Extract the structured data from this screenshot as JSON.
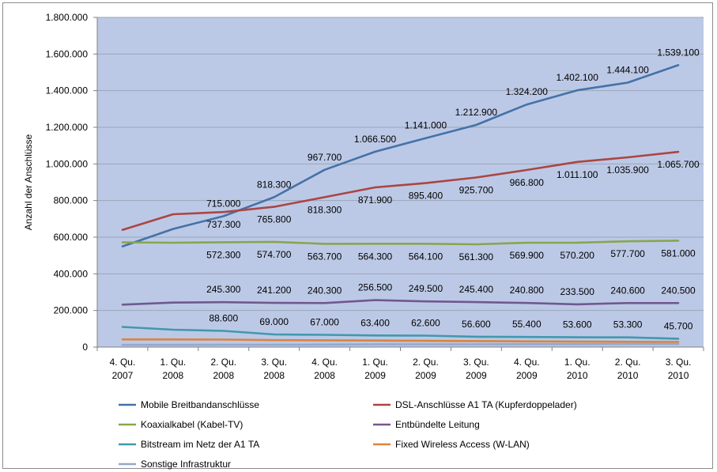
{
  "chart_data": {
    "type": "line",
    "ylabel": "Anzahl der Anschlüsse",
    "ylim": [
      0,
      1800000
    ],
    "y_ticks": [
      "0",
      "200.000",
      "400.000",
      "600.000",
      "800.000",
      "1.000.000",
      "1.200.000",
      "1.400.000",
      "1.600.000",
      "1.800.000"
    ],
    "categories": [
      [
        "4. Qu.",
        "2007"
      ],
      [
        "1. Qu.",
        "2008"
      ],
      [
        "2. Qu.",
        "2008"
      ],
      [
        "3. Qu.",
        "2008"
      ],
      [
        "4. Qu.",
        "2008"
      ],
      [
        "1. Qu.",
        "2009"
      ],
      [
        "2. Qu.",
        "2009"
      ],
      [
        "3. Qu.",
        "2009"
      ],
      [
        "4. Qu.",
        "2009"
      ],
      [
        "1. Qu.",
        "2010"
      ],
      [
        "2. Qu.",
        "2010"
      ],
      [
        "3. Qu.",
        "2010"
      ]
    ],
    "legend_position": "bottom",
    "grid": "horizontal",
    "plot_background": "#bcc9e6",
    "series": [
      {
        "name": "Mobile  Breitbandanschlüsse",
        "color": "#4572a7",
        "values": [
          550000,
          645000,
          715000,
          818300,
          967700,
          1066500,
          1141000,
          1212900,
          1324200,
          1402100,
          1444100,
          1539100
        ],
        "labels": [
          null,
          null,
          "715.000",
          "818.300",
          "967.700",
          "1.066.500",
          "1.141.000",
          "1.212.900",
          "1.324.200",
          "1.402.100",
          "1.444.100",
          "1.539.100"
        ],
        "label_pos": "above"
      },
      {
        "name": "DSL-Anschlüsse A1 TA (Kupferdoppelader)",
        "color": "#aa4643",
        "values": [
          640000,
          725000,
          737300,
          765800,
          818300,
          871900,
          895400,
          925700,
          966800,
          1011100,
          1035900,
          1065700
        ],
        "labels": [
          null,
          null,
          "737.300",
          "765.800",
          "818.300",
          "871.900",
          "895.400",
          "925.700",
          "966.800",
          "1.011.100",
          "1.035.900",
          "1.065.700"
        ],
        "label_pos": "below"
      },
      {
        "name": "Koaxialkabel (Kabel-TV)",
        "color": "#89a54e",
        "values": [
          572000,
          570000,
          572300,
          574700,
          563700,
          564300,
          564100,
          561300,
          569900,
          570200,
          577700,
          581000
        ],
        "labels": [
          null,
          null,
          "572.300",
          "574.700",
          "563.700",
          "564.300",
          "564.100",
          "561.300",
          "569.900",
          "570.200",
          "577.700",
          "581.000"
        ],
        "label_pos": "below"
      },
      {
        "name": "Entbündelte Leitung",
        "color": "#71588f",
        "values": [
          232000,
          243000,
          245300,
          241200,
          240300,
          256500,
          249500,
          245400,
          240800,
          233500,
          240600,
          240500
        ],
        "labels": [
          null,
          null,
          "245.300",
          "241.200",
          "240.300",
          "256.500",
          "249.500",
          "245.400",
          "240.800",
          "233.500",
          "240.600",
          "240.500"
        ],
        "label_pos": "above"
      },
      {
        "name": "Bitstream im Netz der A1 TA",
        "color": "#4198af",
        "values": [
          110000,
          95000,
          88600,
          69000,
          67000,
          63400,
          62600,
          56600,
          55400,
          53600,
          53300,
          45700
        ],
        "labels": [
          null,
          null,
          "88.600",
          "69.000",
          "67.000",
          "63.400",
          "62.600",
          "56.600",
          "55.400",
          "53.600",
          "53.300",
          "45.700"
        ],
        "label_pos": "above"
      },
      {
        "name": "Fixed Wireless Access (W-LAN)",
        "color": "#db843d",
        "values": [
          42000,
          42000,
          41000,
          38000,
          37000,
          36000,
          34000,
          33000,
          31000,
          30000,
          29000,
          28000
        ],
        "labels": [],
        "label_pos": "none"
      },
      {
        "name": "Sonstige Infrastruktur",
        "color": "#93a9cf",
        "values": [
          12000,
          12000,
          13000,
          13000,
          14000,
          15000,
          15000,
          15000,
          16000,
          16000,
          17000,
          17000
        ],
        "labels": [],
        "label_pos": "none"
      }
    ]
  }
}
